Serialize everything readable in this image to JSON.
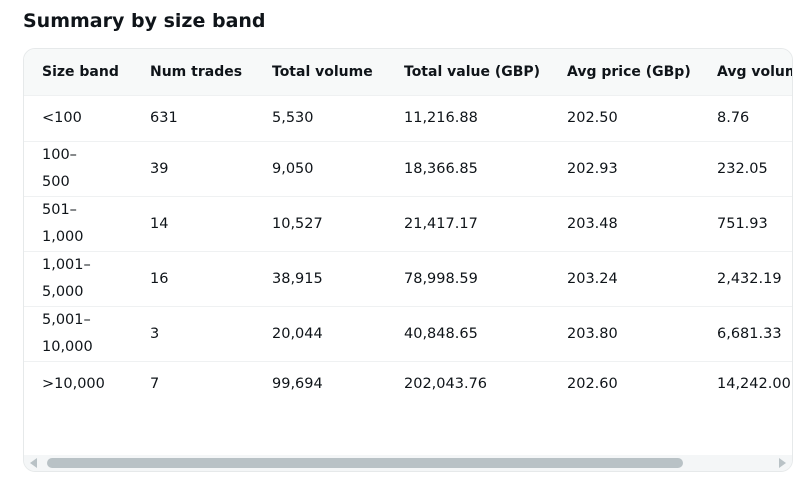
{
  "header": {
    "title": "Summary by size band"
  },
  "table": {
    "columns": [
      "Size band",
      "Num trades",
      "Total volume",
      "Total value (GBP)",
      "Avg price (GBp)",
      "Avg volum"
    ],
    "rows": [
      [
        "<100",
        "631",
        "5,530",
        "11,216.88",
        "202.50",
        "8.76"
      ],
      [
        "100–500",
        "39",
        "9,050",
        "18,366.85",
        "202.93",
        "232.05"
      ],
      [
        "501–1,000",
        "14",
        "10,527",
        "21,417.17",
        "203.48",
        "751.93"
      ],
      [
        "1,001–5,000",
        "16",
        "38,915",
        "78,998.59",
        "203.24",
        "2,432.19"
      ],
      [
        "5,001–10,000",
        "3",
        "20,044",
        "40,848.65",
        "203.80",
        "6,681.33"
      ],
      [
        ">10,000",
        "7",
        "99,694",
        "202,043.76",
        "202.60",
        "14,242.00"
      ]
    ]
  }
}
